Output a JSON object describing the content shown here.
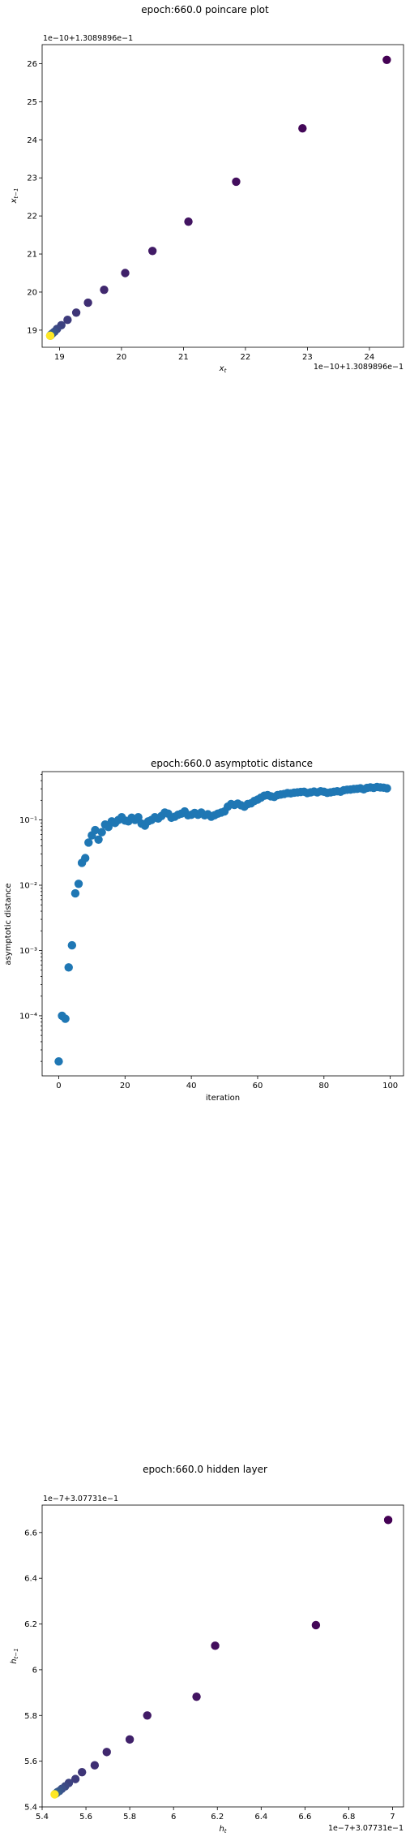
{
  "chart_data": [
    {
      "type": "scatter",
      "title": "epoch:660.0 poincare plot",
      "xlabel": "x_t",
      "ylabel": "x_{t−1}",
      "x_offset_label": "1e−10+1.3089896e−1",
      "y_offset_label": "1e−10+1.3089896e−1",
      "xlim": [
        18.72,
        24.55
      ],
      "ylim": [
        18.55,
        26.5
      ],
      "x_ticks": [
        19,
        20,
        21,
        22,
        23,
        24
      ],
      "y_ticks": [
        19,
        20,
        21,
        22,
        23,
        24,
        25,
        26
      ],
      "colormap": "viridis",
      "points": [
        {
          "x": 24.28,
          "y": 26.1,
          "c": 0.0
        },
        {
          "x": 22.92,
          "y": 24.3,
          "c": 0.02
        },
        {
          "x": 21.85,
          "y": 22.9,
          "c": 0.04
        },
        {
          "x": 21.08,
          "y": 21.85,
          "c": 0.06
        },
        {
          "x": 20.5,
          "y": 21.08,
          "c": 0.08
        },
        {
          "x": 20.06,
          "y": 20.5,
          "c": 0.1
        },
        {
          "x": 19.72,
          "y": 20.06,
          "c": 0.12
        },
        {
          "x": 19.46,
          "y": 19.72,
          "c": 0.14
        },
        {
          "x": 19.27,
          "y": 19.46,
          "c": 0.16
        },
        {
          "x": 19.13,
          "y": 19.27,
          "c": 0.18
        },
        {
          "x": 19.03,
          "y": 19.13,
          "c": 0.2
        },
        {
          "x": 18.96,
          "y": 19.03,
          "c": 0.22
        },
        {
          "x": 18.92,
          "y": 18.96,
          "c": 0.24
        },
        {
          "x": 18.89,
          "y": 18.92,
          "c": 0.26
        },
        {
          "x": 18.87,
          "y": 18.89,
          "c": 0.28
        },
        {
          "x": 18.86,
          "y": 18.87,
          "c": 0.3
        },
        {
          "x": 18.855,
          "y": 18.86,
          "c": 0.32
        },
        {
          "x": 18.852,
          "y": 18.855,
          "c": 0.34
        },
        {
          "x": 18.85,
          "y": 18.852,
          "c": 1.0
        }
      ]
    },
    {
      "type": "scatter",
      "title": "epoch:660.0 asymptotic distance",
      "xlabel": "iteration",
      "ylabel": "asymptotic distance",
      "yscale": "log",
      "xlim": [
        -5,
        104
      ],
      "ylim": [
        1.2e-05,
        0.55
      ],
      "x_ticks": [
        0,
        20,
        40,
        60,
        80,
        100
      ],
      "y_ticks": [
        {
          "value": 0.0001,
          "label": "10⁻⁴"
        },
        {
          "value": 0.001,
          "label": "10⁻³"
        },
        {
          "value": 0.01,
          "label": "10⁻²"
        },
        {
          "value": 0.1,
          "label": "10⁻¹"
        }
      ],
      "color": "#1f77b4",
      "x": [
        0,
        1,
        2,
        3,
        4,
        5,
        6,
        7,
        8,
        9,
        10,
        11,
        12,
        13,
        14,
        15,
        16,
        17,
        18,
        19,
        20,
        21,
        22,
        23,
        24,
        25,
        26,
        27,
        28,
        29,
        30,
        31,
        32,
        33,
        34,
        35,
        36,
        37,
        38,
        39,
        40,
        41,
        42,
        43,
        44,
        45,
        46,
        47,
        48,
        49,
        50,
        51,
        52,
        53,
        54,
        55,
        56,
        57,
        58,
        59,
        60,
        61,
        62,
        63,
        64,
        65,
        66,
        67,
        68,
        69,
        70,
        71,
        72,
        73,
        74,
        75,
        76,
        77,
        78,
        79,
        80,
        81,
        82,
        83,
        84,
        85,
        86,
        87,
        88,
        89,
        90,
        91,
        92,
        93,
        94,
        95,
        96,
        97,
        98,
        99
      ],
      "y": [
        2e-05,
        0.0001,
        9e-05,
        0.00055,
        0.0012,
        0.0075,
        0.0105,
        0.022,
        0.026,
        0.045,
        0.058,
        0.07,
        0.05,
        0.065,
        0.085,
        0.078,
        0.095,
        0.09,
        0.1,
        0.11,
        0.098,
        0.095,
        0.108,
        0.1,
        0.11,
        0.088,
        0.082,
        0.095,
        0.1,
        0.11,
        0.105,
        0.115,
        0.13,
        0.125,
        0.108,
        0.112,
        0.12,
        0.125,
        0.135,
        0.118,
        0.12,
        0.128,
        0.12,
        0.13,
        0.118,
        0.122,
        0.112,
        0.118,
        0.125,
        0.13,
        0.135,
        0.16,
        0.175,
        0.17,
        0.178,
        0.168,
        0.16,
        0.175,
        0.18,
        0.195,
        0.205,
        0.22,
        0.235,
        0.24,
        0.23,
        0.225,
        0.24,
        0.245,
        0.25,
        0.258,
        0.255,
        0.262,
        0.265,
        0.268,
        0.27,
        0.258,
        0.265,
        0.272,
        0.265,
        0.275,
        0.27,
        0.26,
        0.265,
        0.27,
        0.275,
        0.27,
        0.285,
        0.29,
        0.292,
        0.298,
        0.3,
        0.305,
        0.295,
        0.31,
        0.315,
        0.31,
        0.32,
        0.315,
        0.312,
        0.305
      ]
    },
    {
      "type": "scatter",
      "title": "epoch:660.0 hidden layer",
      "xlabel": "h_t",
      "ylabel": "h_{t−1}",
      "x_offset_label": "1e−7+3.07731e−1",
      "y_offset_label": "1e−7+3.07731e−1",
      "xlim": [
        5.4,
        7.05
      ],
      "ylim": [
        5.4,
        6.72
      ],
      "x_ticks": [
        5.4,
        5.6,
        5.8,
        6.0,
        6.2,
        6.4,
        6.6,
        6.8,
        7.0
      ],
      "y_ticks": [
        5.4,
        5.6,
        5.8,
        6.0,
        6.2,
        6.4,
        6.6
      ],
      "colormap": "viridis",
      "points": [
        {
          "x": 6.98,
          "y": 6.655,
          "c": 0.0
        },
        {
          "x": 6.65,
          "y": 6.195,
          "c": 0.02
        },
        {
          "x": 6.19,
          "y": 6.105,
          "c": 0.04
        },
        {
          "x": 6.105,
          "y": 5.882,
          "c": 0.06
        },
        {
          "x": 5.88,
          "y": 5.8,
          "c": 0.08
        },
        {
          "x": 5.8,
          "y": 5.695,
          "c": 0.1
        },
        {
          "x": 5.695,
          "y": 5.64,
          "c": 0.12
        },
        {
          "x": 5.64,
          "y": 5.582,
          "c": 0.14
        },
        {
          "x": 5.582,
          "y": 5.552,
          "c": 0.16
        },
        {
          "x": 5.552,
          "y": 5.522,
          "c": 0.18
        },
        {
          "x": 5.522,
          "y": 5.505,
          "c": 0.2
        },
        {
          "x": 5.505,
          "y": 5.49,
          "c": 0.22
        },
        {
          "x": 5.49,
          "y": 5.479,
          "c": 0.24
        },
        {
          "x": 5.479,
          "y": 5.47,
          "c": 0.26
        },
        {
          "x": 5.47,
          "y": 5.465,
          "c": 0.28
        },
        {
          "x": 5.465,
          "y": 5.46,
          "c": 0.3
        },
        {
          "x": 5.46,
          "y": 5.457,
          "c": 0.32
        },
        {
          "x": 5.457,
          "y": 5.455,
          "c": 1.0
        }
      ]
    }
  ]
}
